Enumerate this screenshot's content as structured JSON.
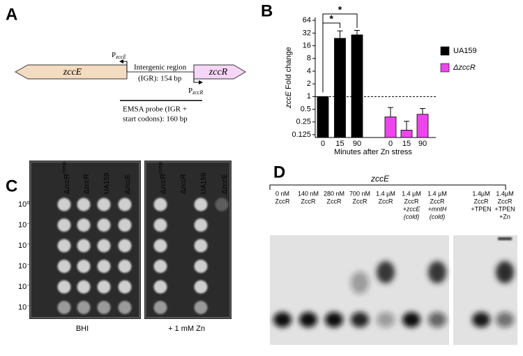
{
  "panel_labels": [
    "A",
    "B",
    "C",
    "D"
  ],
  "panel_a": {
    "gene_left": "zccE",
    "gene_right": "zccR",
    "promoter_left": {
      "letter": "P",
      "subscript": "zccE"
    },
    "promoter_right": {
      "letter": "P",
      "subscript": "zccR"
    },
    "igr_label": [
      "Intergenic region",
      "(IGR): 154 bp"
    ],
    "probe_label": [
      "EMSA probe (IGR +",
      "start codons): 160 bp"
    ]
  },
  "chart_data": {
    "type": "bar",
    "y_label_gene": "zccE",
    "y_label": "Fold change",
    "x_label": "Minutes after Zn stress",
    "categories": [
      "0",
      "15",
      "90",
      "0",
      "15",
      "90"
    ],
    "series": [
      {
        "name": "UA159",
        "color": "#000000",
        "values": [
          1,
          24,
          29,
          null,
          null,
          null
        ],
        "errors": [
          null,
          12,
          8,
          null,
          null,
          null
        ]
      },
      {
        "name": "ΔzccR",
        "color": "#ee44ee",
        "values": [
          null,
          null,
          null,
          0.33,
          0.16,
          0.38
        ],
        "errors": [
          null,
          null,
          null,
          0.22,
          0.1,
          0.14
        ]
      }
    ],
    "ylim": [
      0.107,
      75
    ],
    "yticks": [
      0.125,
      0.25,
      0.5,
      1,
      2,
      4,
      8,
      16,
      32,
      64
    ],
    "log_y": true,
    "reference_line": 1,
    "annotations": [
      "*",
      "*"
    ]
  },
  "panel_c": {
    "columns": [
      "ΔzccR",
      "ΔzccR",
      "UA159",
      "ΔzccE"
    ],
    "column_0_superscript": "comp",
    "rows": [
      "10⁰",
      "10⁻¹",
      "10⁻²",
      "10⁻³",
      "10⁻⁴",
      "10⁻⁵"
    ],
    "plates": [
      "BHI",
      "+ 1 mM Zn"
    ]
  },
  "panel_d": {
    "title": "zccE",
    "lanes": [
      [
        "0 nM",
        "ZccR"
      ],
      [
        "140 nM",
        "ZccR"
      ],
      [
        "280 nM",
        "ZccR"
      ],
      [
        "700 nM",
        "ZccR"
      ],
      [
        "1.4 µM",
        "ZccR"
      ],
      [
        "1.4 µM",
        "ZccR",
        "+zccE",
        "(cold)"
      ],
      [
        "1.4 µM",
        "ZccR",
        "+mntH",
        "(cold)"
      ],
      [
        "1.4µM",
        "ZccR",
        "+TPEN"
      ],
      [
        "1.4µM",
        "ZccR",
        "+TPEN",
        "+Zn"
      ]
    ]
  }
}
